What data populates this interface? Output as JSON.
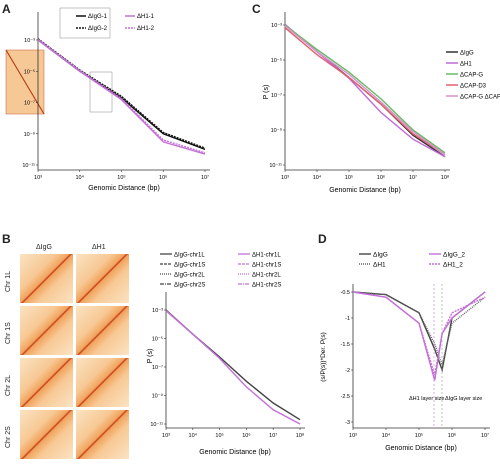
{
  "panels": {
    "A": {
      "label": "A",
      "xlabel": "Genomic Distance (bp)",
      "xticks": [
        "10³",
        "10⁴",
        "10⁵",
        "10⁶",
        "10⁷"
      ],
      "yticks": [
        "10⁻³",
        "10⁻⁵",
        "10⁻⁷",
        "10⁻⁹",
        "10⁻¹¹"
      ],
      "legend": [
        "ΔIgG-1",
        "ΔIgG-2",
        "ΔH1-1",
        "ΔH1-2"
      ],
      "colors": {
        "igg": "#111111",
        "h1": "#c470d8"
      }
    },
    "B": {
      "label": "B",
      "col_headers": [
        "ΔIgG",
        "ΔH1"
      ],
      "row_labels": [
        "Chr 1L",
        "Chr 1S",
        "Chr 2L",
        "Chr 2S"
      ],
      "legend": [
        "ΔIgG-chr1L",
        "ΔIgG-chr1S",
        "ΔIgG-chr2L",
        "ΔIgG-chr2S",
        "ΔH1-chr1L",
        "ΔH1-chr1S",
        "ΔH1-chr2L",
        "ΔH1-chr2S"
      ],
      "ylabel": "P (s)",
      "xlabel": "Genomic Distance (bp)",
      "xticks": [
        "10³",
        "10⁴",
        "10⁵",
        "10⁶",
        "10⁷",
        "10⁸"
      ],
      "yticks": [
        "10⁻³",
        "10⁻⁵",
        "10⁻⁷",
        "10⁻⁹",
        "10⁻¹¹"
      ]
    },
    "C": {
      "label": "C",
      "ylabel": "P (s)",
      "xlabel": "Genomic Distance (bp)",
      "xticks": [
        "10³",
        "10⁴",
        "10⁵",
        "10⁶",
        "10⁷",
        "10⁸"
      ],
      "yticks": [
        "10⁻³",
        "10⁻⁵",
        "10⁻⁷",
        "10⁻⁹",
        "10⁻¹¹"
      ],
      "legend": [
        "ΔIgG",
        "ΔH1",
        "ΔCAP-G",
        "ΔCAP-D3",
        "ΔCAP-G ΔCAP-D3"
      ],
      "colors": [
        "#333333",
        "#c06ad8",
        "#66bb66",
        "#e06070",
        "#d890c8"
      ]
    },
    "D": {
      "label": "D",
      "ylabel": "(s/P(s))*Der. P(s)",
      "xlabel": "Genomic Distance (bp)",
      "xticks": [
        "10³",
        "10⁴",
        "10⁵",
        "10⁶",
        "10⁷"
      ],
      "yticks": [
        "-0.5",
        "-1",
        "-1.5",
        "-2",
        "-2.5",
        "-3"
      ],
      "legend": [
        "ΔIgG",
        "ΔIgG_2",
        "ΔH1",
        "ΔH1_2"
      ],
      "annot_h1": "ΔH1 layer size",
      "annot_igg": "ΔIgG layer size"
    }
  },
  "chart_data": [
    {
      "type": "line",
      "xlabel": "Genomic Distance (bp)",
      "series": [
        {
          "name": "ΔIgG-1",
          "x": [
            1000,
            10000,
            100000,
            1000000,
            10000000
          ],
          "y": [
            0.001,
            1e-05,
            2e-07,
            1e-09,
            1e-10
          ]
        },
        {
          "name": "ΔIgG-2",
          "x": [
            1000,
            10000,
            100000,
            1000000,
            10000000
          ],
          "y": [
            0.0012,
            1.2e-05,
            2.5e-07,
            1.2e-09,
            1.2e-10
          ]
        },
        {
          "name": "ΔH1-1",
          "x": [
            1000,
            10000,
            100000,
            1000000,
            10000000
          ],
          "y": [
            0.001,
            1e-05,
            1.5e-07,
            3e-10,
            5e-11
          ]
        },
        {
          "name": "ΔH1-2",
          "x": [
            1000,
            10000,
            100000,
            1000000,
            10000000
          ],
          "y": [
            0.0011,
            1.1e-05,
            1.8e-07,
            4e-10,
            6e-11
          ]
        }
      ]
    },
    {
      "type": "line",
      "ylabel": "P (s)",
      "xlabel": "Genomic Distance (bp)",
      "series": [
        {
          "name": "ΔIgG",
          "x": [
            1000,
            10000,
            100000,
            1000000,
            10000000,
            100000000
          ],
          "y": [
            0.001,
            3e-05,
            1e-06,
            3e-08,
            5e-10,
            3e-11
          ]
        },
        {
          "name": "ΔH1",
          "x": [
            1000,
            10000,
            100000,
            1000000,
            10000000,
            100000000
          ],
          "y": [
            0.0011,
            3e-05,
            9e-07,
            1e-08,
            3e-10,
            3e-11
          ]
        },
        {
          "name": "ΔCAP-G",
          "x": [
            1000,
            10000,
            100000,
            1000000,
            10000000,
            100000000
          ],
          "y": [
            0.001,
            4e-05,
            2e-06,
            6e-08,
            1e-09,
            5e-11
          ]
        },
        {
          "name": "ΔCAP-D3",
          "x": [
            1000,
            10000,
            100000,
            1000000,
            10000000,
            100000000
          ],
          "y": [
            0.0007,
            2e-05,
            1e-06,
            3e-08,
            6e-10,
            4e-11
          ]
        },
        {
          "name": "ΔCAP-G ΔCAP-D3",
          "x": [
            1000,
            10000,
            100000,
            1000000,
            10000000,
            100000000
          ],
          "y": [
            0.0009,
            3e-05,
            1.5e-06,
            4e-08,
            8e-10,
            4e-11
          ]
        }
      ]
    },
    {
      "type": "line",
      "ylabel": "P (s)",
      "xlabel": "Genomic Distance (bp)",
      "series": [
        {
          "name": "ΔIgG-chr1L",
          "x": [
            1000,
            10000,
            100000,
            1000000,
            10000000,
            100000000
          ],
          "y": [
            0.001,
            2e-05,
            5e-07,
            1e-08,
            3e-10,
            2e-11
          ]
        },
        {
          "name": "ΔH1-chr1L",
          "x": [
            1000,
            10000,
            100000,
            1000000,
            10000000,
            100000000
          ],
          "y": [
            0.0009,
            2e-05,
            4e-07,
            4e-09,
            1e-10,
            1e-11
          ]
        }
      ]
    },
    {
      "type": "line",
      "ylabel": "(s/P(s))*Der. P(s)",
      "xlabel": "Genomic Distance (bp)",
      "series": [
        {
          "name": "ΔIgG",
          "x": [
            1000,
            10000,
            100000,
            300000,
            500000,
            1000000,
            10000000
          ],
          "y": [
            -0.5,
            -0.55,
            -0.9,
            -1.6,
            -2.0,
            -1.0,
            -0.5
          ]
        },
        {
          "name": "ΔIgG_2",
          "x": [
            1000,
            10000,
            100000,
            300000,
            500000,
            1000000,
            10000000
          ],
          "y": [
            -0.5,
            -0.55,
            -0.9,
            -1.5,
            -1.9,
            -1.1,
            -0.6
          ]
        },
        {
          "name": "ΔH1",
          "x": [
            1000,
            10000,
            100000,
            300000,
            500000,
            1000000,
            10000000
          ],
          "y": [
            -0.5,
            -0.6,
            -1.1,
            -2.2,
            -1.3,
            -1.0,
            -0.5
          ]
        },
        {
          "name": "ΔH1_2",
          "x": [
            1000,
            10000,
            100000,
            300000,
            500000,
            1000000,
            10000000
          ],
          "y": [
            -0.5,
            -0.6,
            -1.1,
            -2.1,
            -1.3,
            -0.9,
            -0.6
          ]
        }
      ]
    }
  ]
}
